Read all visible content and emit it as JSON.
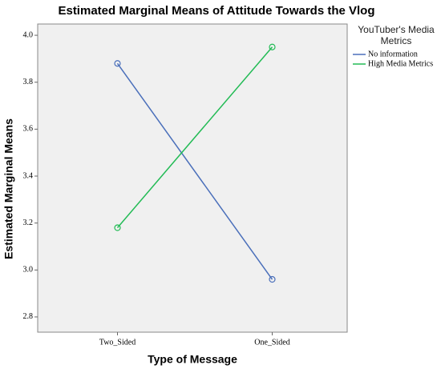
{
  "chart_data": {
    "type": "line",
    "title": "Estimated Marginal Means of Attitude Towards the Vlog",
    "x_label": "Type of Message",
    "y_label": "Estimated Marginal Means",
    "categories": [
      "Two_Sided",
      "One_Sided"
    ],
    "legend_title": "YouTuber's Media Metrics",
    "legend_position": "right",
    "series": [
      {
        "name": "No information",
        "color": "#4a6fba",
        "values": [
          3.88,
          2.96
        ]
      },
      {
        "name": "High Media Metrics",
        "color": "#22bb55",
        "values": [
          3.18,
          3.95
        ]
      }
    ],
    "ylim": [
      2.735,
      4.048
    ],
    "yticks": [
      {
        "value": 2.8,
        "label": "2.8"
      },
      {
        "value": 3.0,
        "label": "3.0"
      },
      3.2,
      3.4,
      3.6,
      3.8,
      {
        "value": 4.0,
        "label": "4.0"
      }
    ],
    "grid": false
  }
}
